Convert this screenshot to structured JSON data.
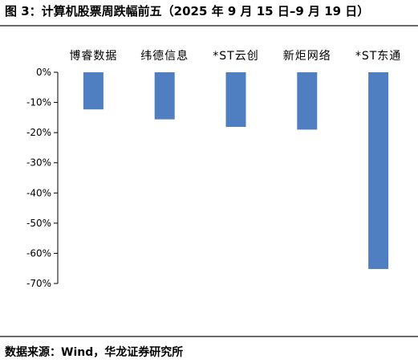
{
  "figure": {
    "title": "图 3：计算机股票周跌幅前五（2025 年 9 月 15 日–9 月 19 日）",
    "source": "数据来源：Wind，华龙证券研究所"
  },
  "colors": {
    "bar": "#4f7fc1",
    "axis": "#000000",
    "rule": "#6a6a6a",
    "text": "#000000"
  },
  "chart_data": {
    "type": "bar",
    "title": "计算机股票周跌幅前五（2025 年 9 月 15 日–9 月 19 日）",
    "categories": [
      "博睿数据",
      "纬德信息",
      "*ST云创",
      "新炬网络",
      "*ST东通"
    ],
    "values": [
      -12.3,
      -15.6,
      -18.1,
      -19.0,
      -65.2
    ],
    "ylim": [
      -70,
      0
    ],
    "yticks": [
      0,
      -10,
      -20,
      -30,
      -40,
      -50,
      -60,
      -70
    ],
    "ytick_labels": [
      "0%",
      "-10%",
      "-20%",
      "-30%",
      "-40%",
      "-50%",
      "-60%",
      "-70%"
    ],
    "unit": "%",
    "xlabel": "",
    "ylabel": "",
    "grid": false,
    "legend": "none",
    "category_label_position": "top"
  }
}
